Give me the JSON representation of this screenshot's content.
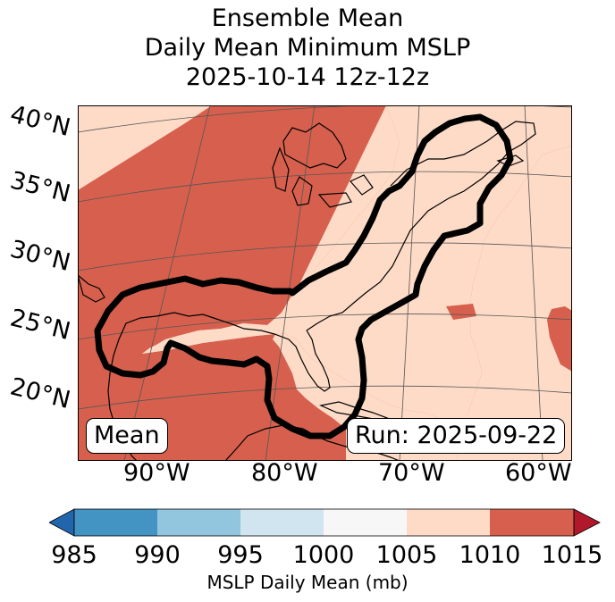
{
  "title": {
    "line1": "Ensemble Mean",
    "line2": "Daily Mean Minimum MSLP",
    "line3": "2025-10-14 12z-12z"
  },
  "map": {
    "lat_labels": [
      "40°N",
      "35°N",
      "30°N",
      "25°N",
      "20°N"
    ],
    "lon_labels": [
      "90°W",
      "80°W",
      "70°W",
      "60°W"
    ],
    "legend_badge": "Mean",
    "run_badge": "Run: 2025-09-22",
    "colors": {
      "high": "#d6604d",
      "mid": "#fddbc7",
      "contour": "#000000",
      "coast": "#000000",
      "grid": "#555555"
    }
  },
  "colorbar": {
    "ticks": [
      "985",
      "990",
      "995",
      "1000",
      "1005",
      "1010",
      "1015"
    ],
    "label": "MSLP Daily Mean (mb)",
    "colors": [
      "#2166ac",
      "#4393c3",
      "#92c5de",
      "#d1e5f0",
      "#f7f7f7",
      "#fddbc7",
      "#d6604d",
      "#b2182b"
    ]
  }
}
